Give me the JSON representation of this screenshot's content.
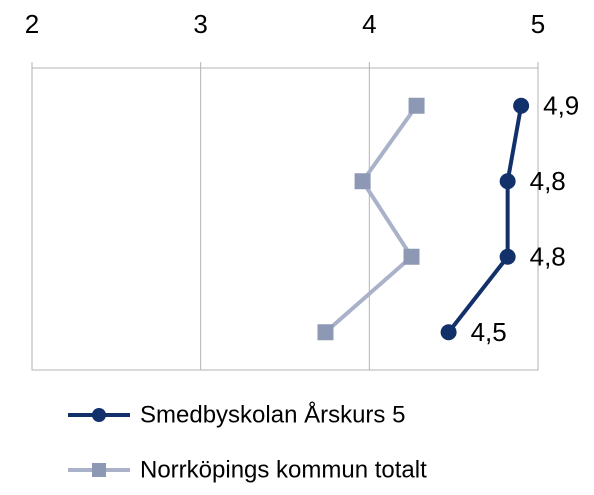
{
  "chart_data": {
    "type": "line",
    "orientation": "horizontal",
    "categories": [
      null,
      null,
      null,
      null
    ],
    "series": [
      {
        "name": "Smedbyskolan Årskurs 5",
        "color": "#12306a",
        "marker": "circle",
        "values": [
          4.9,
          4.82,
          4.82,
          4.47
        ],
        "value_labels": [
          "4,9",
          "4,8",
          "4,8",
          "4,5"
        ]
      },
      {
        "name": "Norrköpings kommun totalt",
        "color": "#a9b2c9",
        "marker": "square",
        "values": [
          4.28,
          3.96,
          4.25,
          3.74
        ]
      }
    ],
    "xlim": [
      2,
      5
    ],
    "xticks": [
      2,
      3,
      4,
      5
    ],
    "grid": true
  }
}
